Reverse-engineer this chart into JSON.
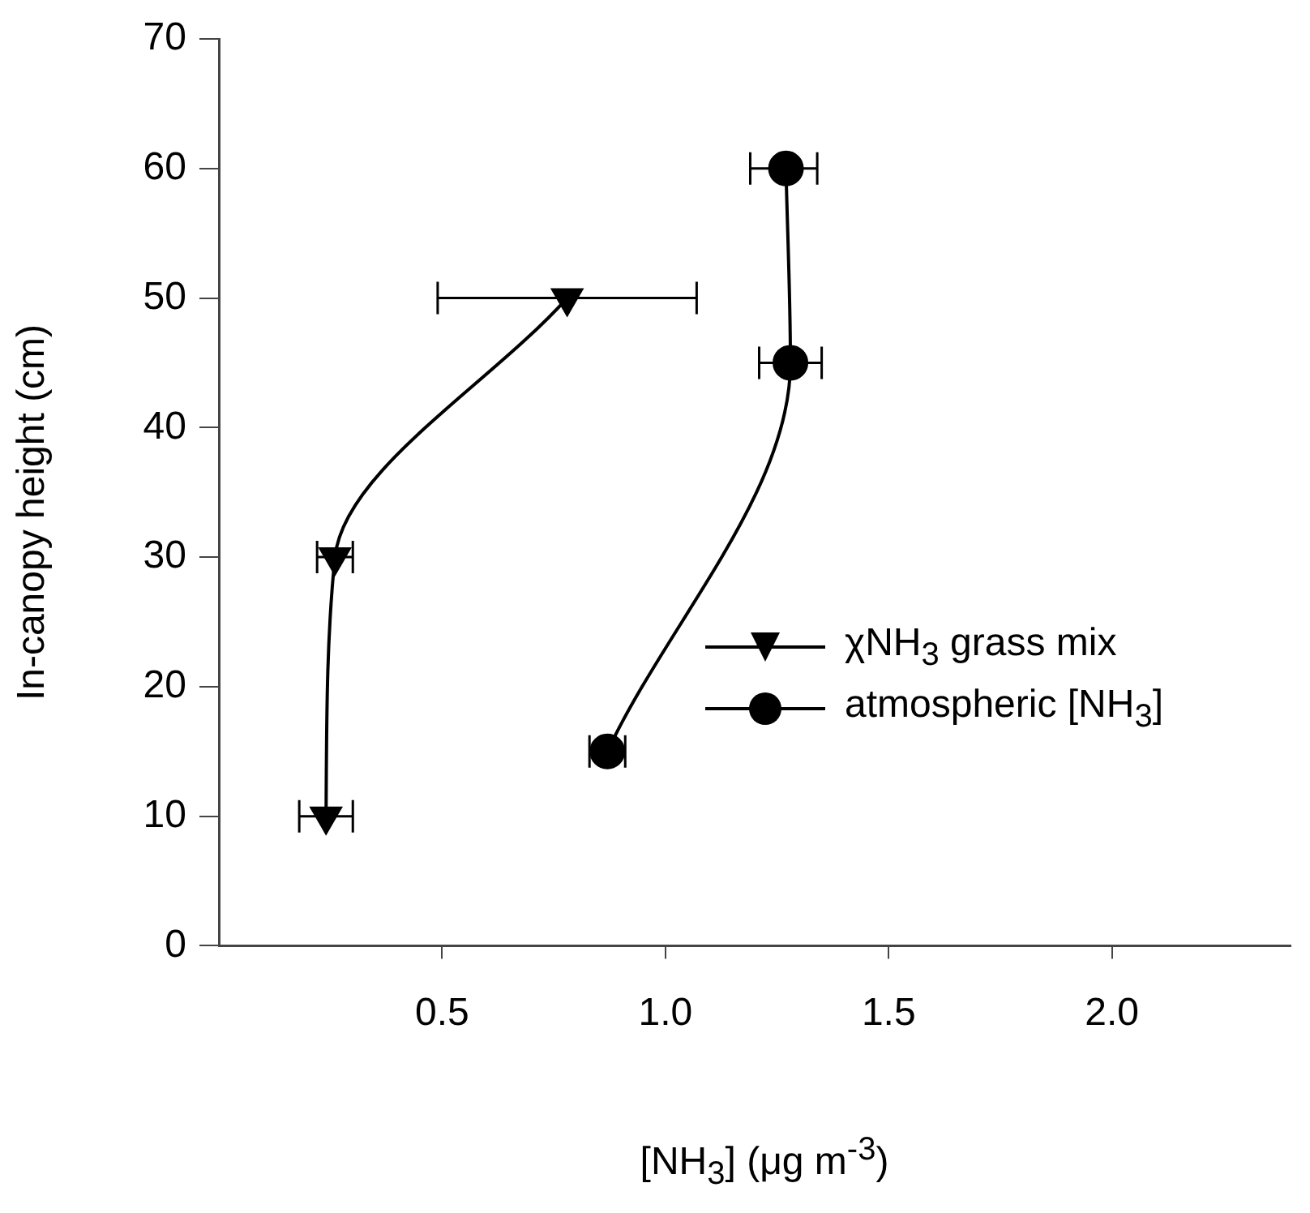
{
  "chart_data": {
    "type": "line",
    "xlabel": "[NH$_{3}$] (μg m$^{-3}$)",
    "ylabel": "In-canopy height (cm)",
    "xlim": [
      0,
      2.4
    ],
    "xticks": [
      {
        "value": 0.5,
        "label": "0.5"
      },
      {
        "value": 1.0,
        "label": "1.0"
      },
      {
        "value": 1.5,
        "label": "1.5"
      },
      {
        "value": 2.0,
        "label": "2.0"
      }
    ],
    "ylim": [
      0,
      70
    ],
    "yticks": [
      0,
      10,
      20,
      30,
      40,
      50,
      60,
      70
    ],
    "grid": false,
    "legend": "right",
    "line_style": "solid",
    "series": [
      {
        "name": "χNH$_{3}$ grass mix",
        "color": "#000000",
        "marker": "triangle",
        "x": [
          0.24,
          0.26,
          0.78
        ],
        "values": [
          10,
          30,
          50
        ],
        "xerrors": [
          [
            0.18,
            0.3
          ],
          [
            0.22,
            0.3
          ],
          [
            0.49,
            1.07
          ]
        ]
      },
      {
        "name": "atmospheric [NH$_{3}$]",
        "color": "#000000",
        "marker": "circle",
        "x": [
          0.87,
          1.28,
          1.27
        ],
        "values": [
          15,
          45,
          60
        ],
        "xerrors": [
          [
            0.83,
            0.91
          ],
          [
            1.21,
            1.35
          ],
          [
            1.19,
            1.34
          ]
        ]
      }
    ]
  }
}
